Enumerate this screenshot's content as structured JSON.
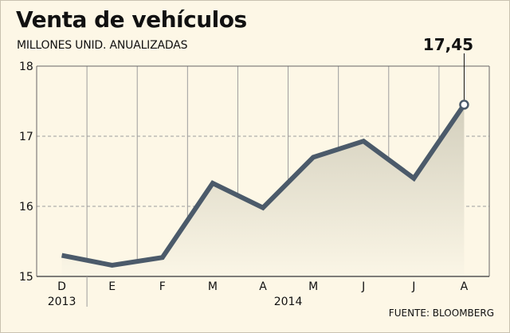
{
  "chart_data": {
    "type": "line",
    "title": "Venta de vehículos",
    "subtitle": "MILLONES UNID. ANUALIZADAS",
    "source": "FUENTE: BLOOMBERG",
    "categories": [
      "D",
      "E",
      "F",
      "M",
      "A",
      "M",
      "J",
      "J",
      "A"
    ],
    "year_labels": [
      {
        "label": "2013",
        "start_index": 0,
        "end_index": 0
      },
      {
        "label": "2014",
        "start_index": 1,
        "end_index": 8
      }
    ],
    "values": [
      15.3,
      15.16,
      15.27,
      16.33,
      15.98,
      16.7,
      16.93,
      16.4,
      17.45
    ],
    "ylim": [
      15,
      18
    ],
    "y_ticks": [
      15,
      16,
      17,
      18
    ],
    "grid": true,
    "callout": {
      "index": 8,
      "label": "17,45"
    },
    "colors": {
      "line": "#4b5a6a",
      "area_top": "#d3cfbd",
      "area_bottom": "#fbf6e6",
      "grid": "#9d9d9d",
      "background": "#fdf7e6"
    }
  }
}
